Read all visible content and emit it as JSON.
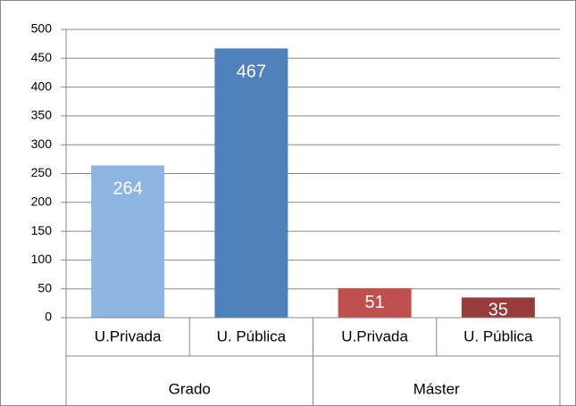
{
  "chart_data": {
    "type": "bar",
    "groups": [
      {
        "name": "Grado",
        "categories": [
          "U.Privada",
          "U. Pública"
        ],
        "values": [
          264,
          467
        ],
        "colors": [
          "#8eb4e3",
          "#4f81bd"
        ]
      },
      {
        "name": "Máster",
        "categories": [
          "U.Privada",
          "U. Pública"
        ],
        "values": [
          51,
          35
        ],
        "colors": [
          "#c0504d",
          "#963c3a"
        ]
      }
    ],
    "ylim": [
      0,
      500
    ],
    "yticks": [
      0,
      50,
      100,
      150,
      200,
      250,
      300,
      350,
      400,
      450,
      500
    ],
    "grid": true
  }
}
